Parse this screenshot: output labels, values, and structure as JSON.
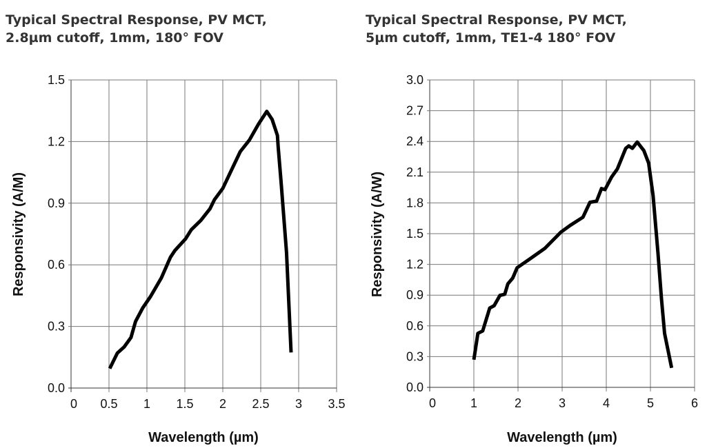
{
  "chart_data": [
    {
      "type": "line",
      "title_lines": [
        "Typical Spectral Response, PV MCT,",
        "2.8µm cutoff, 1mm, 180° FOV"
      ],
      "xlabel": "Wavelength (µm)",
      "ylabel": "Responsivity (A/M)",
      "xlim": [
        0,
        3.5
      ],
      "ylim": [
        0,
        1.5
      ],
      "xticks": [
        "0",
        "0.5",
        "1",
        "1.5",
        "2",
        "2.5",
        "3",
        "3.5"
      ],
      "xtick_values": [
        0,
        0.5,
        1,
        1.5,
        2,
        2.5,
        3,
        3.5
      ],
      "yticks": [
        "0.0",
        "0.3",
        "0.6",
        "0.9",
        "1.2",
        "1.5"
      ],
      "ytick_values": [
        0,
        0.3,
        0.6,
        0.9,
        1.2,
        1.5
      ],
      "grid": true,
      "line_color": "#000000",
      "x": [
        0.51,
        0.61,
        0.7,
        0.79,
        0.85,
        0.945,
        1.05,
        1.19,
        1.31,
        1.37,
        1.51,
        1.585,
        1.71,
        1.83,
        1.89,
        2.0,
        2.1,
        2.23,
        2.35,
        2.47,
        2.58,
        2.65,
        2.72,
        2.73,
        2.77,
        2.84,
        2.9
      ],
      "y": [
        0.095,
        0.17,
        0.2,
        0.246,
        0.324,
        0.39,
        0.447,
        0.536,
        0.637,
        0.67,
        0.727,
        0.771,
        0.816,
        0.872,
        0.917,
        0.972,
        1.05,
        1.151,
        1.207,
        1.285,
        1.347,
        1.308,
        1.23,
        1.174,
        0.995,
        0.66,
        0.173
      ]
    },
    {
      "type": "line",
      "title_lines": [
        "Typical Spectral Response, PV MCT,",
        "5µm cutoff, 1mm, TE1-4 180° FOV"
      ],
      "xlabel": "Wavelength (µm)",
      "ylabel": "Responsivity (A/W)",
      "xlim": [
        0,
        6
      ],
      "ylim": [
        0,
        3.0
      ],
      "xticks": [
        "0",
        "1",
        "2",
        "3",
        "4",
        "5",
        "6"
      ],
      "xtick_values": [
        0,
        1,
        2,
        3,
        4,
        5,
        6
      ],
      "yticks": [
        "0.0",
        "0.3",
        "0.6",
        "0.9",
        "1.2",
        "1.5",
        "1.8",
        "2.1",
        "2.4",
        "2.7",
        "3.0"
      ],
      "ytick_values": [
        0,
        0.3,
        0.6,
        0.9,
        1.2,
        1.5,
        1.8,
        2.1,
        2.4,
        2.7,
        3.0
      ],
      "grid": true,
      "line_color": "#000000",
      "x": [
        1.0,
        1.09,
        1.2,
        1.36,
        1.46,
        1.59,
        1.7,
        1.77,
        1.88,
        1.98,
        2.24,
        2.61,
        2.97,
        3.18,
        3.47,
        3.63,
        3.78,
        3.89,
        3.97,
        4.12,
        4.25,
        4.44,
        4.51,
        4.59,
        4.7,
        4.85,
        4.96,
        5.06,
        5.17,
        5.25,
        5.32,
        5.48
      ],
      "y": [
        0.27,
        0.527,
        0.55,
        0.774,
        0.797,
        0.897,
        0.909,
        1.01,
        1.066,
        1.167,
        1.245,
        1.357,
        1.514,
        1.58,
        1.66,
        1.806,
        1.817,
        1.94,
        1.93,
        2.053,
        2.131,
        2.333,
        2.356,
        2.333,
        2.394,
        2.311,
        2.188,
        1.873,
        1.313,
        0.864,
        0.527,
        0.19
      ]
    }
  ]
}
